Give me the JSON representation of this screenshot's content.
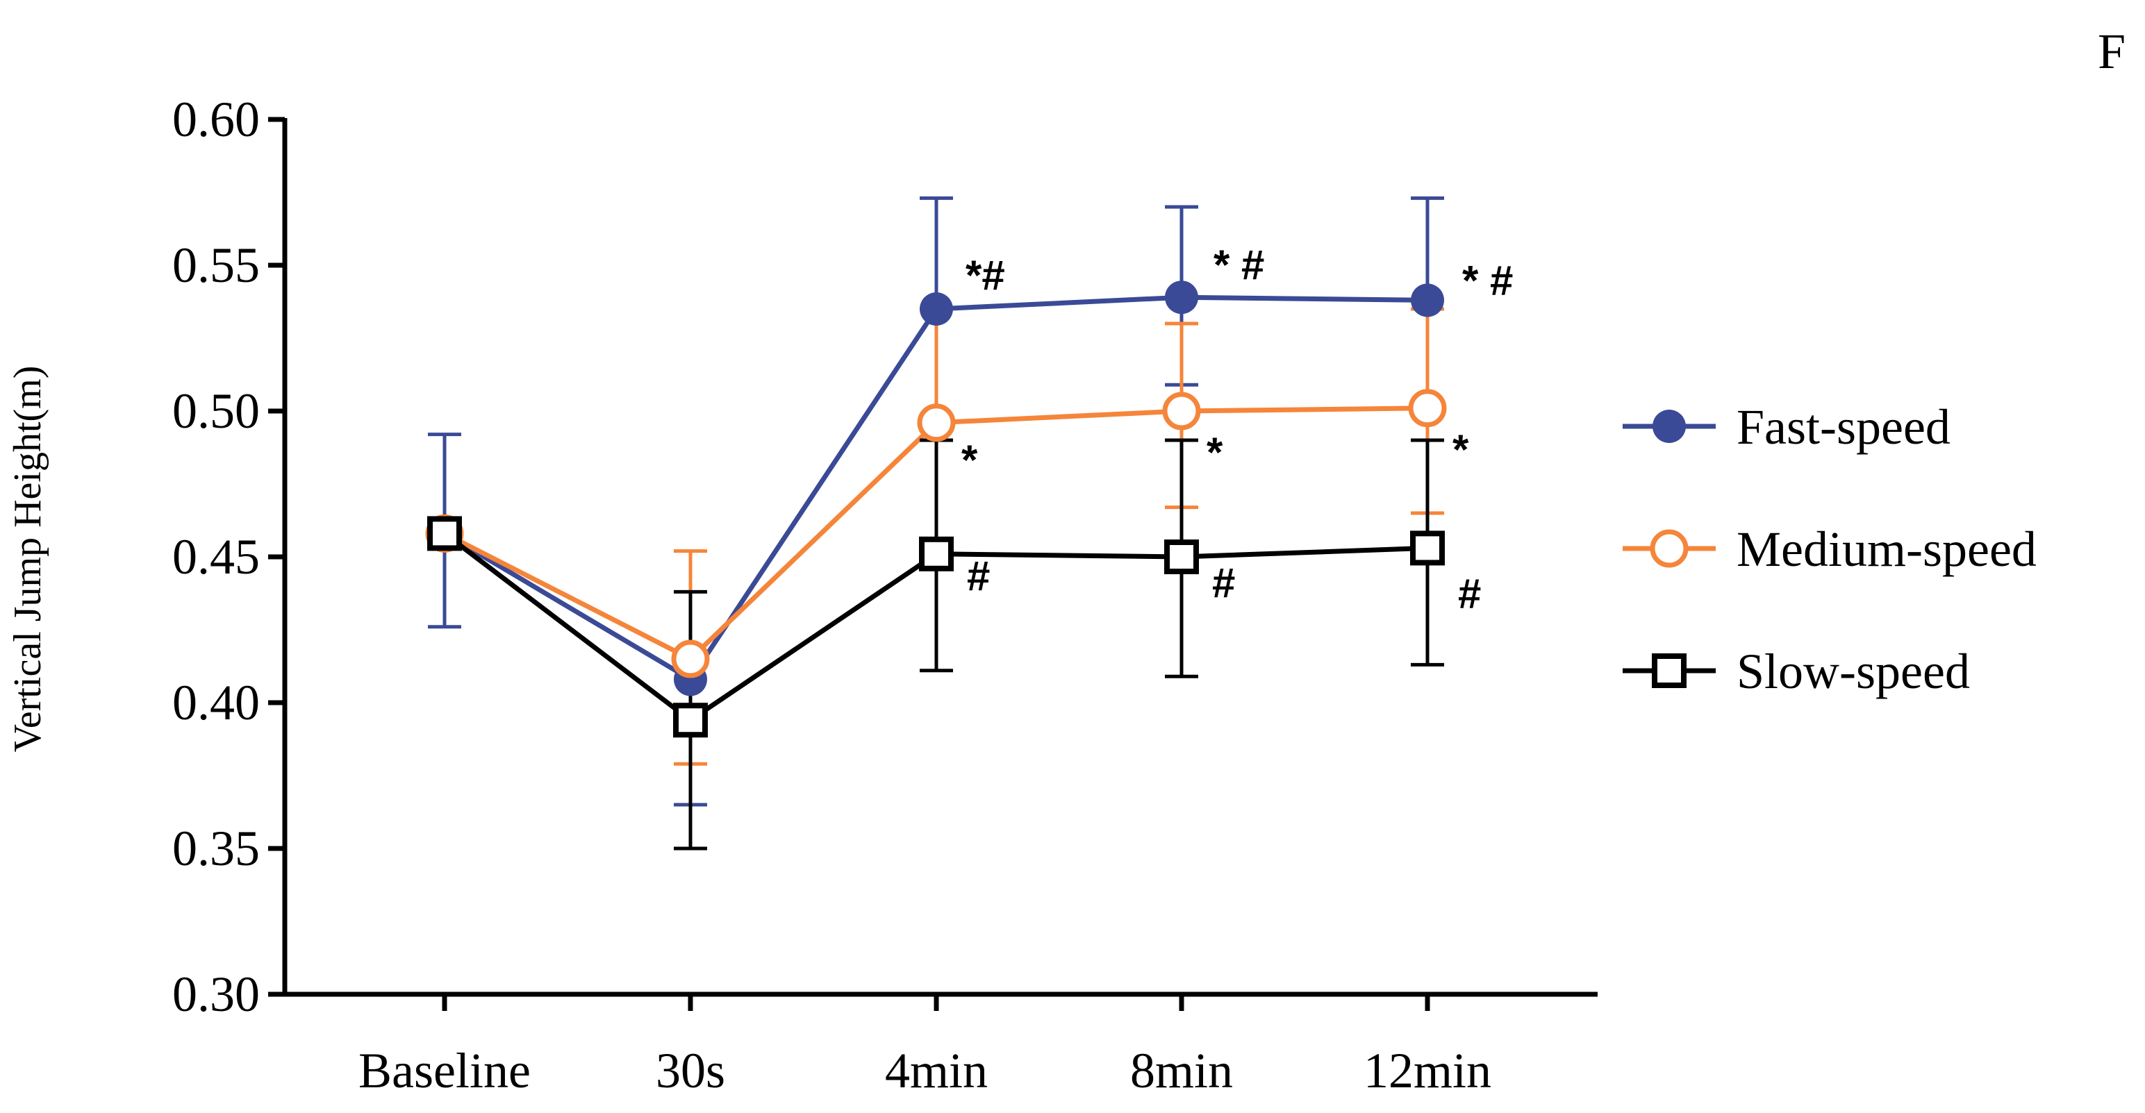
{
  "panel_label": "F",
  "chart_data": {
    "type": "line",
    "title": "",
    "xlabel": "",
    "ylabel": "Vertical Jump Height(m)",
    "ylim": [
      0.3,
      0.6
    ],
    "yticks": [
      "0.30",
      "0.35",
      "0.40",
      "0.45",
      "0.50",
      "0.55",
      "0.60"
    ],
    "categories": [
      "Baseline",
      "30s",
      "4min",
      "8min",
      "12min"
    ],
    "legend_position": "right",
    "series": [
      {
        "name": "Fast-speed",
        "color": "#3a4a96",
        "marker": "filled-circle",
        "values": [
          0.458,
          0.408,
          0.535,
          0.539,
          0.538
        ],
        "err_upper": [
          0.492,
          null,
          0.573,
          0.57,
          0.573
        ],
        "err_lower": [
          0.426,
          0.365,
          null,
          0.509,
          null
        ],
        "annotations": [
          "",
          "",
          "*#",
          "* #",
          "* #"
        ]
      },
      {
        "name": "Medium-speed",
        "color": "#f5853a",
        "marker": "open-circle",
        "values": [
          0.458,
          0.415,
          0.496,
          0.5,
          0.501
        ],
        "err_upper": [
          null,
          0.452,
          0.535,
          0.53,
          0.535
        ],
        "err_lower": [
          null,
          0.379,
          null,
          0.467,
          0.465
        ],
        "annotations": [
          "",
          "",
          "*",
          "*",
          "*"
        ]
      },
      {
        "name": "Slow-speed",
        "color": "#000000",
        "marker": "open-square",
        "values": [
          0.458,
          0.394,
          0.451,
          0.45,
          0.453
        ],
        "err_upper": [
          null,
          0.438,
          0.49,
          0.49,
          0.49
        ],
        "err_lower": [
          null,
          0.35,
          0.411,
          0.409,
          0.413
        ],
        "annotations": [
          "",
          "",
          "#",
          "#",
          "#"
        ]
      }
    ]
  }
}
